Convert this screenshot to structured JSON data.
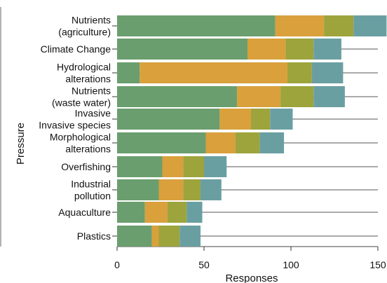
{
  "chart_data": {
    "type": "bar",
    "orientation": "horizontal",
    "stacked": true,
    "categories": [
      "Nutrients\n(agriculture)",
      "Climate Change",
      "Hydrological\nalterations",
      "Nutrients\n(waste water)",
      "Invasive\nInvasive species",
      "Morphological\nalterations",
      "Overfishing",
      "Industrial\npollution",
      "Aquaculture",
      "Plastics"
    ],
    "series": [
      {
        "color": "#6a9e6e",
        "values": [
          91,
          75,
          13,
          69,
          59,
          51,
          26,
          24,
          16,
          20
        ]
      },
      {
        "color": "#d9a03c",
        "values": [
          28,
          22,
          85,
          25,
          18,
          17,
          12,
          14,
          13,
          4
        ]
      },
      {
        "color": "#9da43c",
        "values": [
          17,
          16,
          14,
          19,
          11,
          14,
          12,
          10,
          11,
          12
        ]
      },
      {
        "color": "#6a9fa2",
        "values": [
          19,
          16,
          18,
          18,
          13,
          14,
          13,
          12,
          9,
          12
        ]
      }
    ],
    "xlabel": "Responses",
    "ylabel": "Pressure",
    "xlim": [
      0,
      150
    ],
    "xticks": [
      0,
      50,
      100,
      150
    ],
    "grid": {
      "horizontal_lines": true
    },
    "legend": null
  }
}
